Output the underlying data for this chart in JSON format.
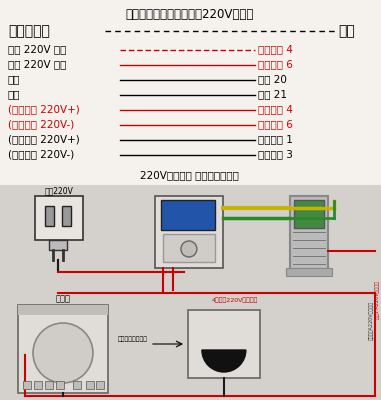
{
  "bg_color": "#f0ede8",
  "top_bg": "#f5f2ee",
  "title1": "一．计量电表接线说明（220V供电）",
  "title1_color": "#000000",
  "title1_size": 8.5,
  "header_left": "分体电控机",
  "header_right": "电表",
  "header_size": 10,
  "rows": [
    {
      "left": "红线 220V 正极",
      "left_color": "#000000",
      "line_color": "#cc0000",
      "right": "电表输入 4",
      "right_color": "#cc0000",
      "dash": true,
      "bold_left": false
    },
    {
      "left": "黑线 220V 负极",
      "left_color": "#000000",
      "line_color": "#cc0000",
      "right": "电表输入 6",
      "right_color": "#cc0000",
      "dash": false,
      "bold_left": false
    },
    {
      "left": "黄线",
      "left_color": "#000000",
      "line_color": "#000000",
      "right": "电表 20",
      "right_color": "#000000",
      "dash": false,
      "bold_left": true
    },
    {
      "left": "绿线",
      "left_color": "#000000",
      "line_color": "#000000",
      "right": "电表 21",
      "right_color": "#000000",
      "dash": false,
      "bold_left": true
    },
    {
      "left": "(输入火线 220V+)",
      "left_color": "#cc0000",
      "line_color": "#cc0000",
      "right": "电表输入 4",
      "right_color": "#cc0000",
      "dash": false,
      "bold_left": false
    },
    {
      "left": "(输入零线 220V-)",
      "left_color": "#cc0000",
      "line_color": "#cc0000",
      "right": "电表输入 6",
      "right_color": "#cc0000",
      "dash": false,
      "bold_left": false
    },
    {
      "left": "(输出火线 220V+)",
      "left_color": "#000000",
      "line_color": "#000000",
      "right": "电表输出 1",
      "right_color": "#000000",
      "dash": false,
      "bold_left": false
    },
    {
      "left": "(输出零线 220V-)",
      "left_color": "#000000",
      "line_color": "#000000",
      "right": "电表输出 3",
      "right_color": "#000000",
      "dash": false,
      "bold_left": false
    }
  ],
  "diagram_title": "220V内置电源 电控计量示意图",
  "diagram_title_size": 7.5,
  "label_supply": "供电220V",
  "label_cooker": "电磁炉",
  "label_hotline": "4口输入220V（火线）",
  "label_neutral": "零电注意螺旋插上",
  "label_right1": "输出1 A220V（火线）",
  "label_right2": "（零线）A220V（零线）",
  "wire_red": "#cc0000",
  "wire_black": "#1a1a1a",
  "wire_yellow": "#c8b400",
  "wire_green": "#2a8a2a",
  "diag_bg": "#d4d0cc",
  "sock_color": "#e8e4e0",
  "ctrl_bg": "#dddad6",
  "ctrl_screen": "#2255aa",
  "meter_bg": "#cccccc",
  "meter_disp": "#448844"
}
